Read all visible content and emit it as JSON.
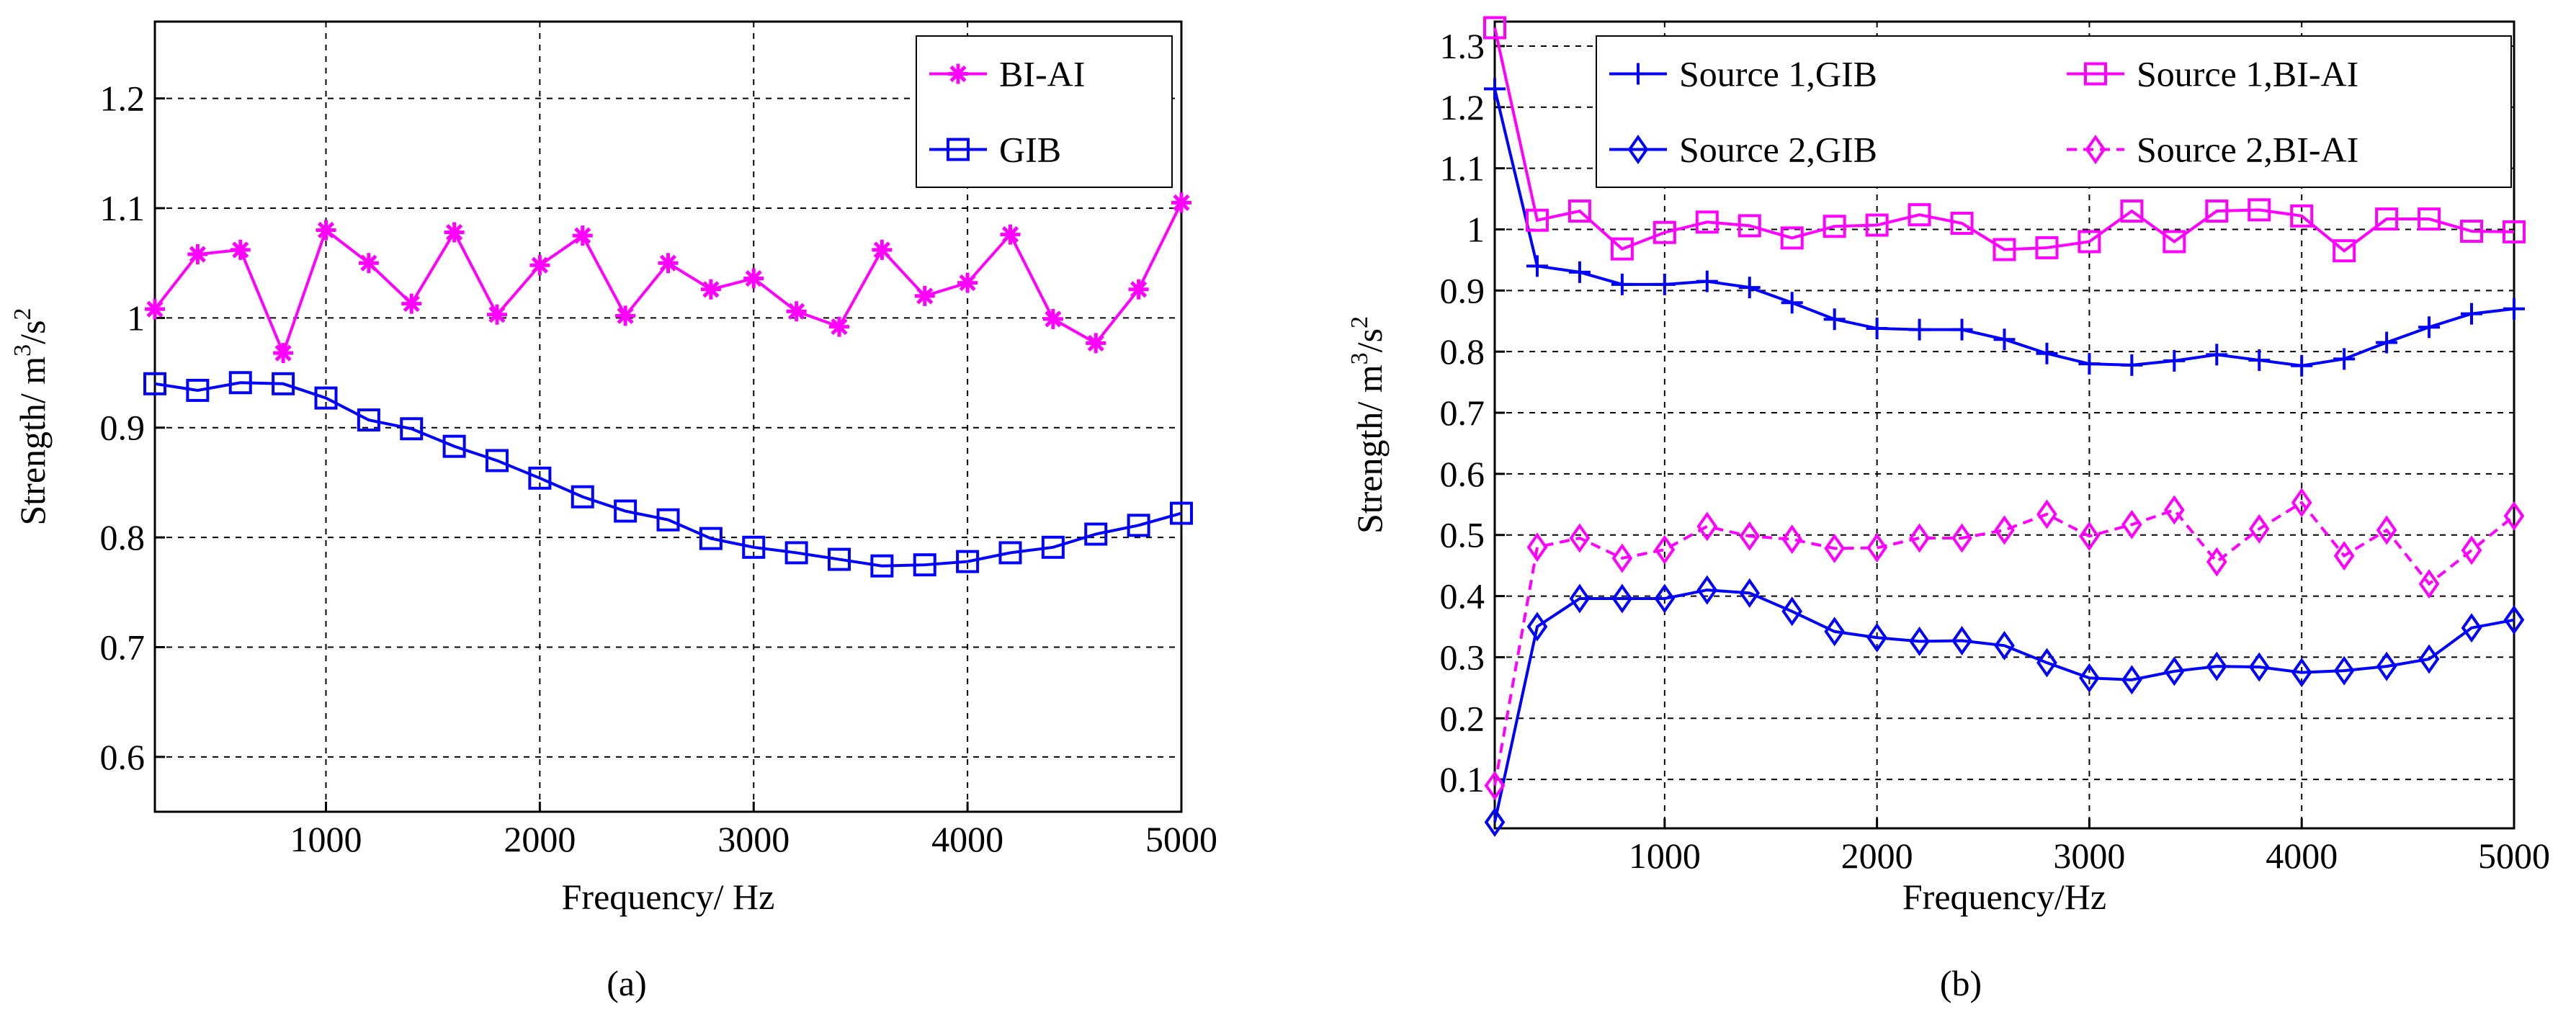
{
  "chart_data": [
    {
      "id": "a",
      "type": "line",
      "caption": "(a)",
      "xlabel": "Frequency/ Hz",
      "ylabel": "Strength/ m³/s²",
      "ylabel_parts": [
        "Strength/ m",
        "3",
        "/s",
        "2"
      ],
      "xlim": [
        200,
        5000
      ],
      "ylim": [
        0.55,
        1.27
      ],
      "xticks": [
        1000,
        2000,
        3000,
        4000,
        5000
      ],
      "xtick_labels": [
        "1000",
        "2000",
        "3000",
        "4000",
        "5000"
      ],
      "yticks": [
        0.6,
        0.7,
        0.8,
        0.9,
        1.0,
        1.1,
        1.2
      ],
      "ytick_labels": [
        "0.6",
        "0.7",
        "0.8",
        "0.9",
        "1",
        "1.1",
        "1.2"
      ],
      "grid": true,
      "legend_position": "top-right",
      "x": [
        200,
        400,
        600,
        800,
        1000,
        1200,
        1400,
        1600,
        1800,
        2000,
        2200,
        2400,
        2600,
        2800,
        3000,
        3200,
        3400,
        3600,
        3800,
        4000,
        4200,
        4400,
        4600,
        4800,
        5000
      ],
      "series": [
        {
          "name": "BI-AI",
          "color": "#ff00ff",
          "marker": "asterisk",
          "dash": "solid",
          "values": [
            1.008,
            1.058,
            1.062,
            0.968,
            1.08,
            1.05,
            1.013,
            1.078,
            1.003,
            1.048,
            1.075,
            1.002,
            1.05,
            1.026,
            1.036,
            1.006,
            0.992,
            1.062,
            1.02,
            1.032,
            1.076,
            0.999,
            0.977,
            1.026,
            1.105
          ]
        },
        {
          "name": "GIB",
          "color": "#0000ff",
          "marker": "square",
          "dash": "solid",
          "values": [
            0.94,
            0.934,
            0.941,
            0.94,
            0.927,
            0.907,
            0.899,
            0.883,
            0.87,
            0.854,
            0.837,
            0.824,
            0.816,
            0.799,
            0.791,
            0.786,
            0.78,
            0.774,
            0.775,
            0.778,
            0.786,
            0.791,
            0.803,
            0.811,
            0.822
          ]
        }
      ]
    },
    {
      "id": "b",
      "type": "line",
      "caption": "(b)",
      "xlabel": "Frequency/Hz",
      "ylabel": "Strength/ m³/s²",
      "ylabel_parts": [
        "Strength/ m",
        "3",
        "/s",
        "2"
      ],
      "xlim": [
        200,
        5000
      ],
      "ylim": [
        0.02,
        1.34
      ],
      "xticks": [
        1000,
        2000,
        3000,
        4000,
        5000
      ],
      "xtick_labels": [
        "1000",
        "2000",
        "3000",
        "4000",
        "5000"
      ],
      "yticks": [
        0.1,
        0.2,
        0.3,
        0.4,
        0.5,
        0.6,
        0.7,
        0.8,
        0.9,
        1.0,
        1.1,
        1.2,
        1.3
      ],
      "ytick_labels": [
        "0.1",
        "0.2",
        "0.3",
        "0.4",
        "0.5",
        "0.6",
        "0.7",
        "0.8",
        "0.9",
        "1",
        "1.1",
        "1.2",
        "1.3"
      ],
      "grid": true,
      "legend_position": "top",
      "x": [
        200,
        400,
        600,
        800,
        1000,
        1200,
        1400,
        1600,
        1800,
        2000,
        2200,
        2400,
        2600,
        2800,
        3000,
        3200,
        3400,
        3600,
        3800,
        4000,
        4200,
        4400,
        4600,
        4800,
        5000
      ],
      "series": [
        {
          "name": "Source 1,GIB",
          "color": "#0000ff",
          "marker": "plus",
          "dash": "solid",
          "values": [
            1.23,
            0.94,
            0.93,
            0.91,
            0.91,
            0.915,
            0.905,
            0.88,
            0.853,
            0.838,
            0.836,
            0.836,
            0.82,
            0.797,
            0.78,
            0.778,
            0.785,
            0.795,
            0.786,
            0.777,
            0.788,
            0.815,
            0.84,
            0.862,
            0.87
          ]
        },
        {
          "name": "Source 2,GIB",
          "color": "#0000ff",
          "marker": "diamond",
          "dash": "solid",
          "values": [
            0.03,
            0.35,
            0.396,
            0.396,
            0.396,
            0.41,
            0.405,
            0.375,
            0.342,
            0.332,
            0.326,
            0.327,
            0.319,
            0.291,
            0.266,
            0.263,
            0.277,
            0.285,
            0.284,
            0.275,
            0.278,
            0.285,
            0.297,
            0.348,
            0.361
          ]
        },
        {
          "name": "Source 1,BI-AI",
          "color": "#ff00ff",
          "marker": "square",
          "dash": "solid",
          "values": [
            1.33,
            1.015,
            1.03,
            0.968,
            0.995,
            1.012,
            1.006,
            0.986,
            1.005,
            1.007,
            1.024,
            1.01,
            0.967,
            0.97,
            0.98,
            1.03,
            0.98,
            1.03,
            1.032,
            1.022,
            0.965,
            1.017,
            1.017,
            0.997,
            0.996
          ]
        },
        {
          "name": "Source 2,BI-AI",
          "color": "#ff00ff",
          "marker": "diamond",
          "dash": "dashed",
          "values": [
            0.09,
            0.48,
            0.495,
            0.462,
            0.476,
            0.514,
            0.498,
            0.493,
            0.478,
            0.479,
            0.495,
            0.495,
            0.508,
            0.534,
            0.498,
            0.517,
            0.541,
            0.456,
            0.51,
            0.553,
            0.466,
            0.508,
            0.42,
            0.475,
            0.531
          ]
        }
      ]
    }
  ]
}
